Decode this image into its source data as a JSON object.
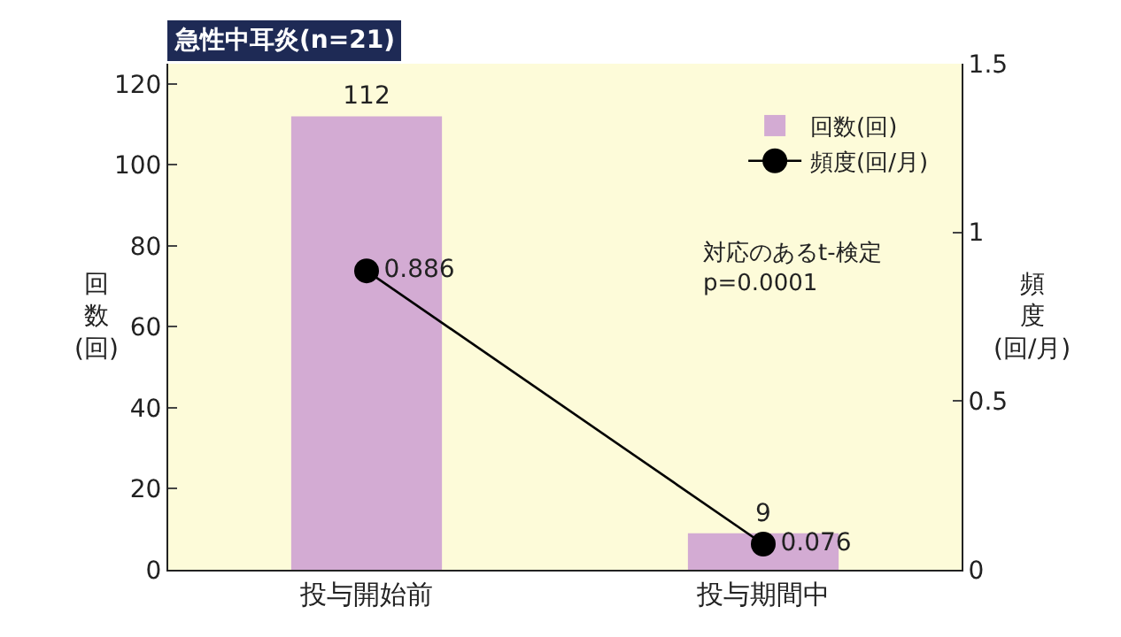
{
  "chart_data": {
    "type": "bar",
    "title": "急性中耳炎(n=21)",
    "categories": [
      "投与開始前",
      "投与期間中"
    ],
    "series": [
      {
        "name": "回数(回)",
        "color": "#d3abd3",
        "values": [
          112,
          9
        ]
      },
      {
        "name": "頻度(回/月)",
        "type": "line",
        "axis": "y2",
        "color": "#000000",
        "values": [
          0.886,
          0.076
        ],
        "marker": "circle"
      }
    ],
    "ylabel": "回数(回)",
    "y2label": "頻度(回/月)",
    "ylim": [
      0,
      125
    ],
    "yticks": [
      0,
      20,
      40,
      60,
      80,
      100,
      120
    ],
    "y2lim": [
      0,
      1.5
    ],
    "y2ticks": [
      0,
      0.5,
      1,
      1.5
    ],
    "data_labels": true,
    "grid": false,
    "legend": "top right",
    "annotations": [
      "対応のあるt-検定\np=0.0001"
    ]
  }
}
